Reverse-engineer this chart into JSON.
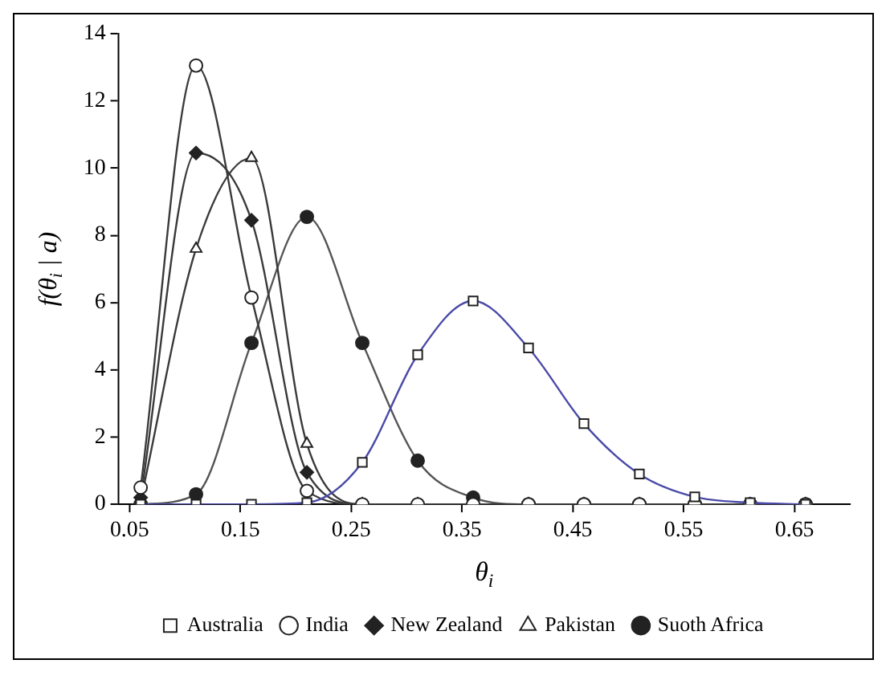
{
  "chart_data": {
    "type": "line",
    "xlabel": "θ$_{i}$",
    "ylabel": "f(θ$_{i}$ | a)",
    "x": [
      0.06,
      0.11,
      0.16,
      0.21,
      0.26,
      0.31,
      0.36,
      0.41,
      0.46,
      0.51,
      0.56,
      0.61,
      0.66
    ],
    "xlim": [
      0.04,
      0.7
    ],
    "xticks": [
      0.05,
      0.15,
      0.25,
      0.35,
      0.45,
      0.55,
      0.65
    ],
    "ylim": [
      0,
      14
    ],
    "yticks": [
      0,
      2,
      4,
      6,
      8,
      10,
      12,
      14
    ],
    "grid": false,
    "legend": "bottom",
    "series": [
      {
        "name": "Australia",
        "color": "#4a4aa8",
        "marker": "square",
        "values": [
          0,
          0,
          0,
          0.05,
          1.25,
          4.45,
          6.05,
          4.65,
          2.4,
          0.9,
          0.22,
          0.05,
          0
        ]
      },
      {
        "name": "India",
        "color": "#3a3a3a",
        "marker": "circle",
        "values": [
          0.5,
          13.05,
          6.15,
          0.4,
          0,
          0,
          0,
          0,
          0,
          0,
          0,
          0,
          0
        ]
      },
      {
        "name": "New Zealand",
        "color": "#3a3a3a",
        "marker": "diamond",
        "values": [
          0.2,
          10.45,
          8.45,
          0.95,
          0,
          0,
          0,
          0,
          0,
          0,
          0,
          0,
          0
        ]
      },
      {
        "name": "Pakistan",
        "color": "#3a3a3a",
        "marker": "triangle",
        "values": [
          0.1,
          7.6,
          10.3,
          1.8,
          0,
          0,
          0,
          0,
          0,
          0,
          0,
          0,
          0
        ]
      },
      {
        "name": "Suoth Africa",
        "color": "#555555",
        "marker": "circle",
        "values": [
          0,
          0.3,
          4.8,
          8.55,
          4.8,
          1.3,
          0.2,
          0,
          0,
          0,
          0,
          0,
          0
        ]
      }
    ]
  }
}
